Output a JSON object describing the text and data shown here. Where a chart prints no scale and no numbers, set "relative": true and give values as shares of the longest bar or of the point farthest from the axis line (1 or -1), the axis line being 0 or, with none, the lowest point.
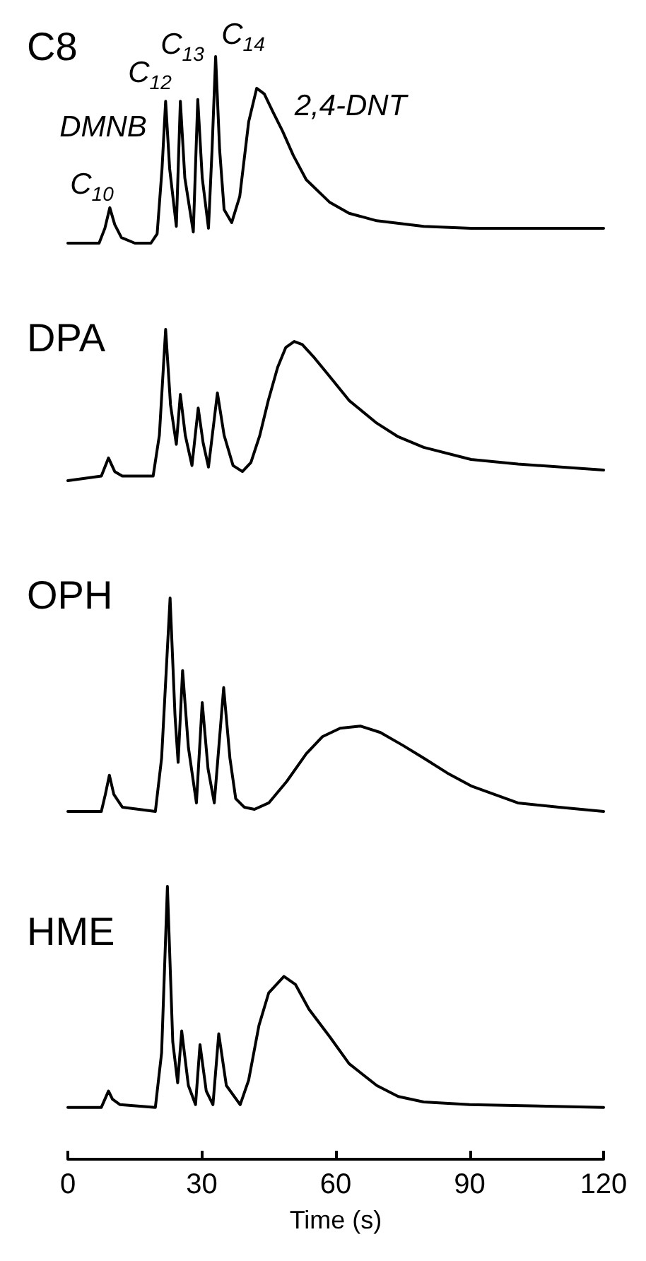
{
  "chart_data": [
    {
      "type": "line",
      "title": "C8",
      "relative": true,
      "marker": "none",
      "line_style": "solid",
      "tick_labels": false,
      "xlim": [
        0,
        120
      ],
      "xticks": [
        0,
        30,
        60,
        90,
        120
      ],
      "x": [
        0,
        7,
        8.3,
        9.4,
        10.5,
        12,
        15,
        18.6,
        20,
        21.1,
        21.9,
        22.8,
        24.3,
        25.2,
        26.2,
        28.1,
        29.1,
        30.1,
        31.5,
        32.3,
        33.1,
        34,
        35,
        36.7,
        38.5,
        40.5,
        42.3,
        44,
        46,
        48.1,
        50.5,
        53.4,
        58.6,
        63,
        69.2,
        79.7,
        90.3,
        120
      ],
      "series": [
        {
          "color": "#000000",
          "values": [
            0,
            0,
            0.08,
            0.19,
            0.1,
            0.03,
            0,
            0,
            0.05,
            0.4,
            0.76,
            0.4,
            0.09,
            0.76,
            0.35,
            0.06,
            0.77,
            0.35,
            0.08,
            0.5,
            1,
            0.5,
            0.18,
            0.11,
            0.25,
            0.65,
            0.83,
            0.8,
            0.7,
            0.6,
            0.47,
            0.34,
            0.22,
            0.16,
            0.12,
            0.09,
            0.08,
            0.08
          ]
        }
      ],
      "annotations": [
        "C$_{10}$",
        "DMNB",
        "C$_{12}$",
        "C$_{13}$",
        "C$_{14}$",
        "2,4-DNT"
      ]
    },
    {
      "type": "line",
      "title": "DPA",
      "relative": true,
      "marker": "none",
      "line_style": "solid",
      "tick_labels": false,
      "xlim": [
        0,
        120
      ],
      "xticks": [
        0,
        30,
        60,
        90,
        120
      ],
      "x": [
        0,
        7.5,
        9.1,
        10.5,
        12.2,
        19.1,
        20.5,
        21.9,
        23,
        24.3,
        25.2,
        26.3,
        27.8,
        29.2,
        30.3,
        31.5,
        33.5,
        35,
        37,
        39.1,
        41,
        43,
        44.9,
        47,
        48.8,
        50.7,
        52.5,
        55,
        58.6,
        63,
        69.2,
        74,
        79.7,
        90.3,
        100.8,
        120
      ],
      "series": [
        {
          "color": "#000000",
          "values": [
            0,
            0.03,
            0.15,
            0.06,
            0.03,
            0.03,
            0.3,
            1,
            0.5,
            0.24,
            0.57,
            0.3,
            0.1,
            0.48,
            0.25,
            0.09,
            0.58,
            0.3,
            0.1,
            0.06,
            0.12,
            0.3,
            0.53,
            0.75,
            0.88,
            0.92,
            0.9,
            0.82,
            0.69,
            0.53,
            0.38,
            0.29,
            0.22,
            0.14,
            0.11,
            0.07
          ]
        }
      ]
    },
    {
      "type": "line",
      "title": "OPH",
      "relative": true,
      "marker": "none",
      "line_style": "solid",
      "tick_labels": false,
      "xlim": [
        0,
        120
      ],
      "xticks": [
        0,
        30,
        60,
        90,
        120
      ],
      "x": [
        0,
        7.5,
        8.4,
        9.3,
        10.3,
        12.2,
        19.6,
        21,
        22.9,
        24,
        24.7,
        25.7,
        27,
        28.8,
        30.1,
        31.4,
        32.8,
        34.9,
        36.3,
        37.6,
        39.5,
        41.8,
        45,
        49,
        53.4,
        57,
        61,
        65.5,
        70,
        75,
        79.7,
        85,
        90.3,
        100.8,
        110,
        120
      ],
      "series": [
        {
          "color": "#000000",
          "values": [
            0,
            0,
            0.08,
            0.17,
            0.08,
            0.02,
            0,
            0.25,
            1,
            0.45,
            0.23,
            0.66,
            0.3,
            0.04,
            0.51,
            0.2,
            0.04,
            0.58,
            0.25,
            0.06,
            0.02,
            0.01,
            0.04,
            0.14,
            0.27,
            0.35,
            0.39,
            0.4,
            0.37,
            0.31,
            0.25,
            0.18,
            0.12,
            0.04,
            0.02,
            0
          ]
        }
      ]
    },
    {
      "type": "line",
      "title": "HME",
      "xlabel": "Time (s)",
      "relative": true,
      "marker": "none",
      "line_style": "solid",
      "tick_labels": "x",
      "xlim": [
        0,
        120
      ],
      "xticks": [
        0,
        30,
        60,
        90,
        120
      ],
      "x": [
        0,
        7.5,
        8.3,
        9.1,
        10,
        11.7,
        19.6,
        21,
        22.3,
        23.5,
        24.6,
        25.5,
        27,
        28.6,
        29.6,
        31,
        32.5,
        33.8,
        35.5,
        38.6,
        40.5,
        42.8,
        45,
        48.4,
        51,
        54,
        58.6,
        63,
        69.2,
        74,
        79.7,
        90,
        120
      ],
      "series": [
        {
          "color": "#000000",
          "values": [
            0.19,
            0.19,
            0.22,
            0.25,
            0.22,
            0.2,
            0.19,
            0.39,
            1,
            0.43,
            0.28,
            0.47,
            0.27,
            0.2,
            0.42,
            0.25,
            0.2,
            0.46,
            0.27,
            0.2,
            0.29,
            0.49,
            0.61,
            0.67,
            0.64,
            0.55,
            0.45,
            0.35,
            0.27,
            0.23,
            0.21,
            0.2,
            0.19
          ]
        }
      ]
    }
  ]
}
